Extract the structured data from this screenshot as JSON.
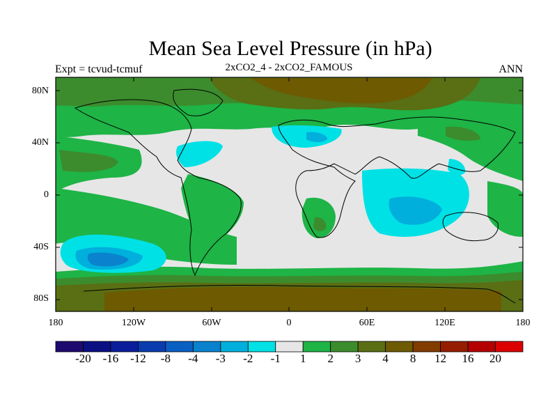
{
  "title": "Mean Sea Level Pressure (in hPa)",
  "left_label": "Expt = tcvud-tcmuf",
  "center_label": "2xCO2_4 - 2xCO2_FAMOUS",
  "right_label": "ANN",
  "lat_ticks": [
    "80N",
    "40N",
    "0",
    "40S",
    "80S"
  ],
  "lon_ticks": [
    "180",
    "120W",
    "60W",
    "0",
    "60E",
    "120E",
    "180"
  ],
  "colorbar": {
    "labels": [
      "-20",
      "-16",
      "-12",
      "-8",
      "-4",
      "-3",
      "-2",
      "-1",
      "1",
      "2",
      "3",
      "4",
      "8",
      "12",
      "16",
      "20"
    ],
    "colors": [
      "#1e0a6e",
      "#0a0f82",
      "#0a1e9b",
      "#0a3caf",
      "#0a5fc3",
      "#0a82cd",
      "#00afdc",
      "#00e1e6",
      "#e6e6e6",
      "#1eb446",
      "#3c8c2d",
      "#5a6e14",
      "#6e5a00",
      "#823c00",
      "#961e00",
      "#b40000",
      "#dc0000"
    ]
  },
  "chart_data": {
    "type": "heatmap",
    "title": "Mean Sea Level Pressure (in hPa)",
    "subtitle": "2xCO2_4 - 2xCO2_FAMOUS",
    "experiment": "Expt = tcvud-tcmuf",
    "season": "ANN",
    "xlim": [
      -180,
      180
    ],
    "ylim": [
      -90,
      90
    ],
    "contour_levels": [
      -20,
      -16,
      -12,
      -8,
      -4,
      -3,
      -2,
      -1,
      1,
      2,
      3,
      4,
      8,
      12,
      16,
      20
    ]
  },
  "fill_colors": {
    "neutral": "#e6e6e6",
    "green": "#1eb446",
    "dgreen": "#3c8c2d",
    "olive": "#5a6e14",
    "brown": "#6e5a00",
    "cyan": "#00e1e6",
    "lblue": "#00afdc",
    "mblue": "#0a82cd"
  }
}
